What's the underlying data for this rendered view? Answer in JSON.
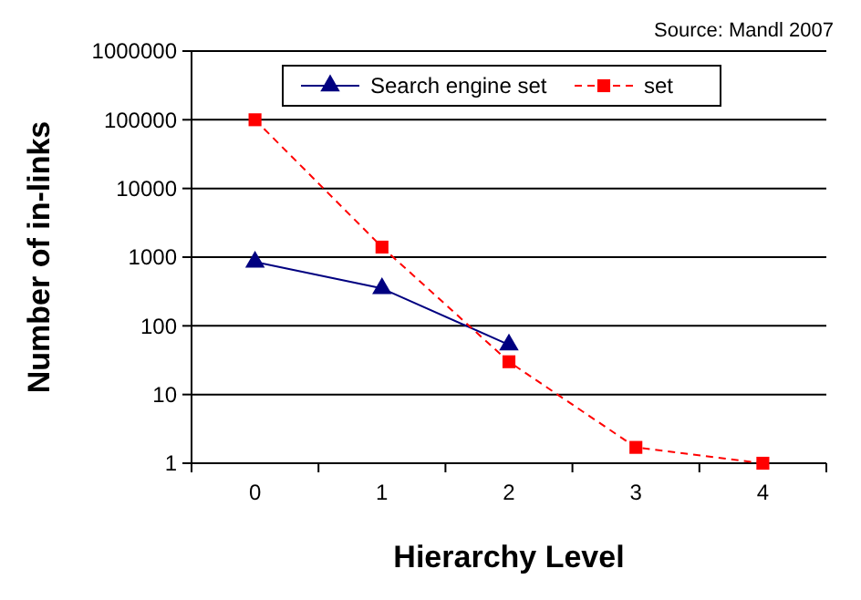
{
  "chart_data": {
    "type": "line",
    "xlabel": "Hierarchy Level",
    "ylabel": "Number of in-links",
    "categories": [
      "0",
      "1",
      "2",
      "3",
      "4"
    ],
    "series": [
      {
        "name": "Search engine set",
        "color": "#000080",
        "values": [
          850,
          350,
          53,
          null,
          null
        ],
        "marker": "triangle",
        "line_style": "solid"
      },
      {
        "name": "set",
        "color": "#ff0000",
        "values": [
          100000,
          1400,
          30,
          1.7,
          1
        ],
        "marker": "square",
        "line_style": "dashed"
      }
    ],
    "log": "y",
    "ylim": [
      1,
      1000000
    ],
    "yticks": [
      1,
      10,
      100,
      1000,
      10000,
      100000,
      1000000
    ],
    "grid": "y",
    "legend": "top",
    "annotations": [
      "Source: Mandl 2007"
    ]
  }
}
